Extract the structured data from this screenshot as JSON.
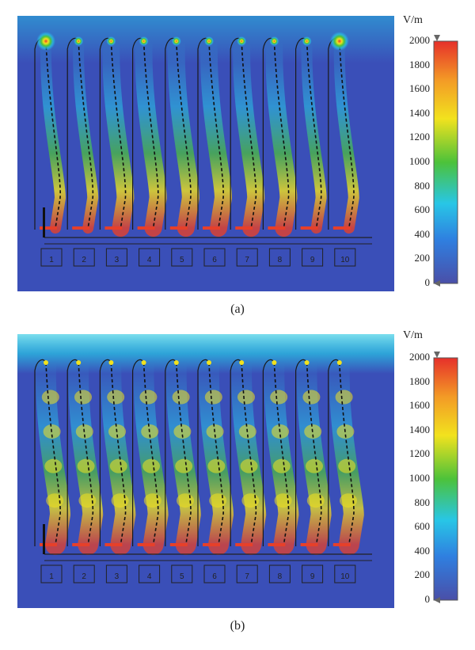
{
  "panels": [
    {
      "id": "a",
      "caption": "(a)",
      "colorbar": {
        "unit": "V/m",
        "ticks": [
          "2000",
          "1800",
          "1600",
          "1400",
          "1200",
          "1000",
          "800",
          "600",
          "400",
          "200",
          "0"
        ]
      },
      "port_labels": [
        "1",
        "2",
        "3",
        "4",
        "5",
        "6",
        "7",
        "8",
        "9",
        "10"
      ]
    },
    {
      "id": "b",
      "caption": "(b)",
      "colorbar": {
        "unit": "V/m",
        "ticks": [
          "2000",
          "1800",
          "1600",
          "1400",
          "1200",
          "1000",
          "800",
          "600",
          "400",
          "200",
          "0"
        ]
      },
      "port_labels": [
        "1",
        "2",
        "3",
        "4",
        "5",
        "6",
        "7",
        "8",
        "9",
        "10"
      ]
    }
  ],
  "colors": {
    "field_background": "#3a4fb8",
    "low": "#3a56c4",
    "mid": "#22c8e0",
    "green": "#4cc23a",
    "yellow": "#f2e21e",
    "high": "#e63a2a"
  }
}
